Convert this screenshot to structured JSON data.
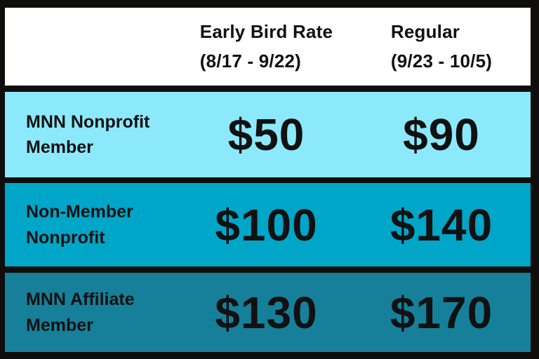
{
  "header": {
    "early_bird": {
      "title": "Early Bird Rate",
      "dates": "(8/17 - 9/22)"
    },
    "regular": {
      "title": "Regular",
      "dates": "(9/23 - 10/5)"
    }
  },
  "rows": [
    {
      "name_line1": "MNN Nonprofit",
      "name_line2": "Member",
      "early_bird": "$50",
      "regular": "$90",
      "bg": "#8be9fb"
    },
    {
      "name_line1": "Non-Member",
      "name_line2": "Nonprofit",
      "early_bird": "$100",
      "regular": "$140",
      "bg": "#00a6c8"
    },
    {
      "name_line1": "MNN Affiliate",
      "name_line2": "Member",
      "early_bird": "$130",
      "regular": "$170",
      "bg": "#16809a"
    }
  ],
  "colors": {
    "frame": "#0f0e0c",
    "header_bg": "#ffffff",
    "text": "#111111",
    "row1_bg": "#8be9fb",
    "row2_bg": "#00a6c8",
    "row3_bg": "#16809a"
  },
  "chart_data": {
    "type": "table",
    "title": "Pricing table",
    "columns": [
      "",
      "Early Bird Rate (8/17 - 9/22)",
      "Regular (9/23 - 10/5)"
    ],
    "rows": [
      [
        "MNN Nonprofit Member",
        "$50",
        "$90"
      ],
      [
        "Non-Member Nonprofit",
        "$100",
        "$140"
      ],
      [
        "MNN Affiliate Member",
        "$130",
        "$170"
      ]
    ]
  }
}
